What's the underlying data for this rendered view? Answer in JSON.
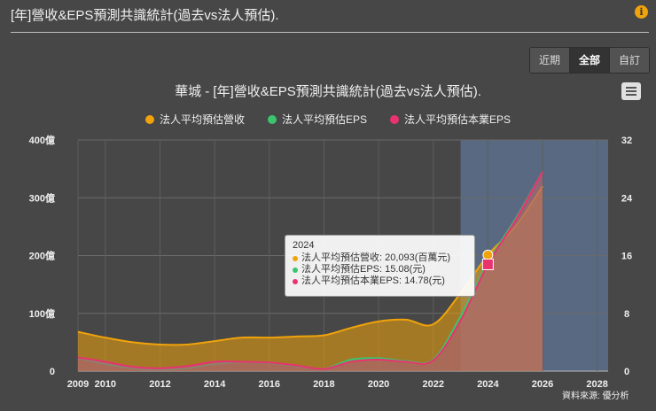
{
  "header": {
    "title": "[年]營收&EPS預測共識統計(過去vs法人預估)."
  },
  "tabs": [
    {
      "label": "近期"
    },
    {
      "label": "全部"
    },
    {
      "label": "自訂"
    }
  ],
  "colors": {
    "revenue": "#f0a30a",
    "eps": "#3cc46f",
    "eps_core": "#e8336f",
    "forecast_band": "#5a6b85"
  },
  "icons": {
    "info": "info-icon",
    "menu": "hamburger-menu-icon"
  },
  "credit": "資料來源: 優分析",
  "chart_data": {
    "type": "area",
    "title": "華城 - [年]營收&EPS預測共識統計(過去vs法人預估).",
    "x_ticks": [
      "2009",
      "2010",
      "2012",
      "2014",
      "2016",
      "2018",
      "2020",
      "2022",
      "2024",
      "2026",
      "2028"
    ],
    "y_left_ticks": [
      "0",
      "100億",
      "200億",
      "300億",
      "400億"
    ],
    "y_right_ticks": [
      "0",
      "8",
      "16",
      "24",
      "32"
    ],
    "xlim": [
      2009,
      2028.4
    ],
    "y_left_lim": [
      0,
      40000
    ],
    "y_right_lim": [
      0,
      32
    ],
    "forecast_band": [
      2023,
      2026
    ],
    "x": [
      2009,
      2010,
      2011,
      2012,
      2013,
      2014,
      2015,
      2016,
      2017,
      2018,
      2019,
      2020,
      2021,
      2022,
      2023,
      2024,
      2025,
      2026
    ],
    "series": [
      {
        "name": "法人平均預估營收",
        "axis": "left",
        "color": "#f0a30a",
        "values": [
          6800,
          5800,
          5000,
          4600,
          4600,
          5200,
          5800,
          5800,
          6000,
          6200,
          7500,
          8600,
          8900,
          8100,
          13500,
          20093,
          25000,
          32000
        ]
      },
      {
        "name": "法人平均預估EPS",
        "axis": "right",
        "color": "#3cc46f",
        "values": [
          1.8,
          1.0,
          0.4,
          0.2,
          0.4,
          1.0,
          1.2,
          1.1,
          0.7,
          0.3,
          1.6,
          1.8,
          1.4,
          1.6,
          7.6,
          15.08,
          21.0,
          27.6
        ]
      },
      {
        "name": "法人平均預估本業EPS",
        "axis": "right",
        "color": "#e8336f",
        "values": [
          1.9,
          1.3,
          0.6,
          0.4,
          0.7,
          1.3,
          1.3,
          1.2,
          0.8,
          0.3,
          1.3,
          1.6,
          1.3,
          1.5,
          7.0,
          14.78,
          20.8,
          27.6
        ]
      }
    ],
    "tooltip": {
      "title": "2024",
      "rows": [
        "法人平均預估營收: 20,093(百萬元)",
        "法人平均預估EPS: 15.08(元)",
        "法人平均預估本業EPS: 14.78(元)"
      ]
    }
  }
}
